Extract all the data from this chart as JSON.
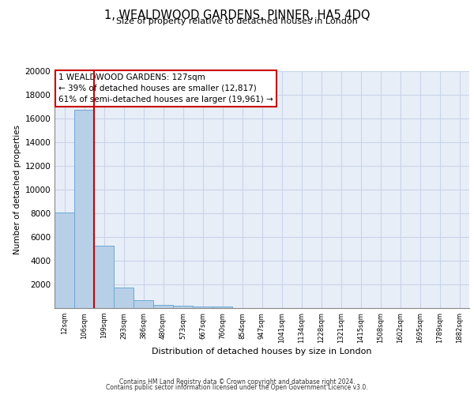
{
  "title": "1, WEALDWOOD GARDENS, PINNER, HA5 4DQ",
  "subtitle": "Size of property relative to detached houses in London",
  "xlabel": "Distribution of detached houses by size in London",
  "ylabel": "Number of detached properties",
  "categories": [
    "12sqm",
    "106sqm",
    "199sqm",
    "293sqm",
    "386sqm",
    "480sqm",
    "573sqm",
    "667sqm",
    "760sqm",
    "854sqm",
    "947sqm",
    "1041sqm",
    "1134sqm",
    "1228sqm",
    "1321sqm",
    "1415sqm",
    "1508sqm",
    "1602sqm",
    "1695sqm",
    "1789sqm",
    "1882sqm"
  ],
  "bar_heights": [
    8100,
    16700,
    5300,
    1750,
    650,
    280,
    200,
    150,
    120,
    0,
    0,
    0,
    0,
    0,
    0,
    0,
    0,
    0,
    0,
    0,
    0
  ],
  "bar_color": "#b8cfe8",
  "bar_edge_color": "#6aaad4",
  "vline_color": "#cc0000",
  "annotation_text": "1 WEALDWOOD GARDENS: 127sqm\n← 39% of detached houses are smaller (12,817)\n61% of semi-detached houses are larger (19,961) →",
  "annotation_box_color": "#ffffff",
  "annotation_box_edge_color": "#cc0000",
  "ylim": [
    0,
    20000
  ],
  "yticks": [
    0,
    2000,
    4000,
    6000,
    8000,
    10000,
    12000,
    14000,
    16000,
    18000,
    20000
  ],
  "grid_color": "#c8d4e8",
  "background_color": "#e8eef8",
  "footer_line1": "Contains HM Land Registry data © Crown copyright and database right 2024.",
  "footer_line2": "Contains public sector information licensed under the Open Government Licence v3.0."
}
